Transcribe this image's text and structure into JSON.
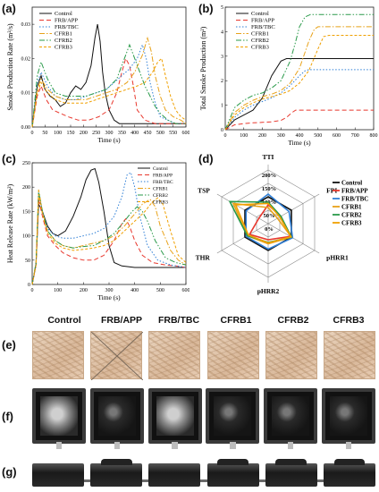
{
  "panels": {
    "a": "(a)",
    "b": "(b)",
    "c": "(c)",
    "d": "(d)",
    "e": "(e)",
    "f": "(f)",
    "g": "(g)"
  },
  "series_names": [
    "Control",
    "FRB/APP",
    "FRB/TBC",
    "CFRB1",
    "CFRB2",
    "CFRB3"
  ],
  "colors": {
    "Control": "#111111",
    "FRB/APP": "#e8382e",
    "FRB/TBC": "#2f7fd6",
    "CFRB1": "#e8a21a",
    "CFRB2": "#2a9a4a",
    "CFRB3": "#f0a000"
  },
  "photo_columns": [
    "Control",
    "FRB/APP",
    "FRB/TBC",
    "CFRB1",
    "CFRB2",
    "CFRB3"
  ],
  "chart_data": [
    {
      "id": "a",
      "type": "line",
      "xlabel": "Time (s)",
      "ylabel": "Smoke Production Rate (m²/s)",
      "xlim": [
        0,
        600
      ],
      "ylim": [
        0,
        0.035
      ],
      "xticks": [
        0,
        50,
        100,
        150,
        200,
        250,
        300,
        350,
        400,
        450,
        500,
        550,
        600
      ],
      "yticks": [
        0,
        0.01,
        0.02,
        0.03
      ],
      "ytick_labels": [
        "0.00",
        "0.01",
        "0.02",
        "0.03"
      ],
      "series": [
        {
          "name": "Control",
          "x": [
            0,
            20,
            35,
            50,
            70,
            90,
            110,
            130,
            150,
            170,
            190,
            210,
            230,
            245,
            255,
            265,
            275,
            285,
            300,
            320,
            340,
            360,
            400,
            500,
            600
          ],
          "y": [
            0,
            0.012,
            0.015,
            0.011,
            0.009,
            0.008,
            0.006,
            0.007,
            0.01,
            0.012,
            0.011,
            0.013,
            0.018,
            0.026,
            0.03,
            0.025,
            0.016,
            0.01,
            0.005,
            0.002,
            0.001,
            0.001,
            0.001,
            0.001,
            0.001
          ]
        },
        {
          "name": "FRB/APP",
          "x": [
            0,
            20,
            35,
            55,
            80,
            110,
            140,
            180,
            220,
            260,
            300,
            330,
            350,
            365,
            380,
            395,
            410,
            440,
            480,
            520,
            560,
            600
          ],
          "y": [
            0,
            0.009,
            0.012,
            0.008,
            0.005,
            0.004,
            0.003,
            0.002,
            0.002,
            0.003,
            0.005,
            0.01,
            0.016,
            0.02,
            0.018,
            0.012,
            0.005,
            0.002,
            0.001,
            0.001,
            0.001,
            0.001
          ]
        },
        {
          "name": "FRB/TBC",
          "x": [
            0,
            20,
            35,
            60,
            90,
            130,
            170,
            210,
            250,
            290,
            320,
            350,
            380,
            410,
            430,
            445,
            460,
            480,
            500,
            530,
            560,
            600
          ],
          "y": [
            0,
            0.013,
            0.016,
            0.012,
            0.009,
            0.008,
            0.008,
            0.009,
            0.01,
            0.011,
            0.013,
            0.015,
            0.017,
            0.02,
            0.024,
            0.02,
            0.013,
            0.007,
            0.003,
            0.002,
            0.001,
            0.001
          ]
        },
        {
          "name": "CFRB1",
          "x": [
            0,
            20,
            35,
            60,
            90,
            130,
            170,
            210,
            250,
            290,
            330,
            370,
            400,
            430,
            450,
            465,
            480,
            500,
            520,
            550,
            580,
            600
          ],
          "y": [
            0,
            0.011,
            0.014,
            0.011,
            0.009,
            0.008,
            0.008,
            0.008,
            0.009,
            0.01,
            0.011,
            0.013,
            0.016,
            0.021,
            0.026,
            0.022,
            0.015,
            0.009,
            0.005,
            0.003,
            0.002,
            0.001
          ]
        },
        {
          "name": "CFRB2",
          "x": [
            0,
            20,
            35,
            60,
            90,
            130,
            170,
            210,
            250,
            290,
            330,
            360,
            380,
            400,
            420,
            440,
            460,
            480,
            500,
            530,
            560,
            600
          ],
          "y": [
            0,
            0.015,
            0.019,
            0.014,
            0.01,
            0.009,
            0.009,
            0.009,
            0.01,
            0.011,
            0.014,
            0.02,
            0.024,
            0.02,
            0.016,
            0.012,
            0.009,
            0.006,
            0.004,
            0.002,
            0.001,
            0.001
          ]
        },
        {
          "name": "CFRB3",
          "x": [
            0,
            20,
            35,
            60,
            90,
            130,
            170,
            210,
            250,
            290,
            330,
            370,
            410,
            440,
            470,
            490,
            505,
            520,
            540,
            560,
            580,
            600
          ],
          "y": [
            0,
            0.01,
            0.013,
            0.01,
            0.008,
            0.007,
            0.007,
            0.007,
            0.008,
            0.009,
            0.01,
            0.011,
            0.012,
            0.013,
            0.016,
            0.019,
            0.02,
            0.015,
            0.009,
            0.005,
            0.003,
            0.002
          ]
        }
      ]
    },
    {
      "id": "b",
      "type": "line",
      "xlabel": "Time (s)",
      "ylabel": "Total Smoke Production (m²)",
      "xlim": [
        0,
        800
      ],
      "ylim": [
        0,
        5
      ],
      "xticks": [
        0,
        100,
        200,
        300,
        400,
        500,
        600,
        700,
        800
      ],
      "yticks": [
        0,
        1,
        2,
        3,
        4,
        5
      ],
      "series": [
        {
          "name": "Control",
          "x": [
            0,
            50,
            100,
            150,
            200,
            250,
            300,
            330,
            350,
            800
          ],
          "y": [
            0,
            0.4,
            0.6,
            0.8,
            1.3,
            2.2,
            2.8,
            2.9,
            2.9,
            2.9
          ]
        },
        {
          "name": "FRB/APP",
          "x": [
            0,
            50,
            100,
            150,
            200,
            250,
            300,
            330,
            360,
            380,
            400,
            800
          ],
          "y": [
            0,
            0.2,
            0.25,
            0.28,
            0.3,
            0.32,
            0.38,
            0.5,
            0.7,
            0.8,
            0.8,
            0.8
          ]
        },
        {
          "name": "FRB/TBC",
          "x": [
            0,
            50,
            100,
            150,
            200,
            250,
            300,
            350,
            400,
            430,
            450,
            800
          ],
          "y": [
            0,
            0.5,
            0.8,
            1.0,
            1.15,
            1.3,
            1.5,
            1.8,
            2.2,
            2.4,
            2.45,
            2.45
          ]
        },
        {
          "name": "CFRB1",
          "x": [
            0,
            50,
            100,
            150,
            200,
            250,
            300,
            350,
            400,
            450,
            480,
            500,
            800
          ],
          "y": [
            0,
            0.7,
            1.0,
            1.2,
            1.35,
            1.45,
            1.6,
            1.9,
            2.5,
            3.6,
            4.1,
            4.2,
            4.2
          ]
        },
        {
          "name": "CFRB2",
          "x": [
            0,
            50,
            100,
            150,
            200,
            250,
            300,
            350,
            380,
            400,
            430,
            460,
            800
          ],
          "y": [
            0,
            0.9,
            1.2,
            1.4,
            1.5,
            1.7,
            2.0,
            2.8,
            3.6,
            4.2,
            4.6,
            4.7,
            4.7
          ]
        },
        {
          "name": "CFRB3",
          "x": [
            0,
            50,
            100,
            150,
            200,
            250,
            300,
            350,
            400,
            450,
            500,
            530,
            560,
            800
          ],
          "y": [
            0,
            0.6,
            0.9,
            1.1,
            1.25,
            1.35,
            1.45,
            1.6,
            1.9,
            2.4,
            3.3,
            3.8,
            3.85,
            3.85
          ]
        }
      ]
    },
    {
      "id": "c",
      "type": "line",
      "xlabel": "Time (s)",
      "ylabel": "Heat Release Rate (kW/m²)",
      "xlim": [
        0,
        600
      ],
      "ylim": [
        0,
        250
      ],
      "xticks": [
        0,
        100,
        200,
        300,
        400,
        500,
        600
      ],
      "yticks": [
        0,
        50,
        100,
        150,
        200,
        250
      ],
      "series": [
        {
          "name": "Control",
          "x": [
            0,
            15,
            25,
            40,
            60,
            80,
            100,
            130,
            160,
            190,
            210,
            230,
            245,
            260,
            280,
            300,
            320,
            350,
            400,
            500,
            600
          ],
          "y": [
            0,
            40,
            165,
            150,
            120,
            105,
            100,
            110,
            140,
            180,
            215,
            235,
            238,
            210,
            150,
            80,
            45,
            38,
            35,
            35,
            35
          ]
        },
        {
          "name": "FRB/APP",
          "x": [
            0,
            15,
            25,
            40,
            60,
            90,
            120,
            160,
            200,
            240,
            280,
            320,
            350,
            365,
            380,
            400,
            430,
            470,
            520,
            560,
            600
          ],
          "y": [
            0,
            40,
            175,
            140,
            100,
            80,
            65,
            55,
            50,
            50,
            60,
            90,
            125,
            135,
            120,
            90,
            60,
            45,
            40,
            38,
            35
          ]
        },
        {
          "name": "FRB/TBC",
          "x": [
            0,
            15,
            25,
            40,
            60,
            90,
            120,
            160,
            200,
            240,
            280,
            320,
            350,
            370,
            385,
            400,
            420,
            450,
            490,
            540,
            600
          ],
          "y": [
            0,
            45,
            190,
            150,
            115,
            100,
            95,
            95,
            100,
            105,
            115,
            140,
            180,
            225,
            230,
            200,
            140,
            80,
            50,
            40,
            35
          ]
        },
        {
          "name": "CFRB1",
          "x": [
            0,
            15,
            25,
            40,
            60,
            90,
            120,
            160,
            200,
            240,
            280,
            320,
            360,
            400,
            430,
            460,
            480,
            500,
            540,
            570,
            600
          ],
          "y": [
            0,
            45,
            195,
            150,
            110,
            90,
            80,
            75,
            80,
            85,
            90,
            100,
            120,
            145,
            165,
            175,
            160,
            120,
            70,
            50,
            40
          ]
        },
        {
          "name": "CFRB2",
          "x": [
            0,
            15,
            25,
            40,
            60,
            90,
            120,
            160,
            200,
            240,
            280,
            320,
            360,
            390,
            410,
            430,
            450,
            480,
            520,
            560,
            600
          ],
          "y": [
            0,
            45,
            190,
            150,
            110,
            90,
            80,
            75,
            78,
            80,
            90,
            105,
            130,
            150,
            160,
            150,
            130,
            90,
            55,
            45,
            40
          ]
        },
        {
          "name": "CFRB3",
          "x": [
            0,
            15,
            25,
            40,
            60,
            90,
            120,
            160,
            200,
            240,
            280,
            320,
            360,
            400,
            440,
            470,
            490,
            510,
            540,
            570,
            600
          ],
          "y": [
            0,
            40,
            185,
            145,
            105,
            85,
            75,
            70,
            72,
            75,
            80,
            90,
            110,
            130,
            150,
            170,
            178,
            165,
            110,
            60,
            45
          ]
        }
      ]
    },
    {
      "id": "d",
      "type": "radar",
      "axes": [
        "TTI",
        "FPI",
        "pHRR1",
        "pHRR2",
        "THR",
        "TSP"
      ],
      "rings": [
        0,
        50,
        100,
        150,
        200
      ],
      "ring_labels": [
        "0%",
        "50%",
        "100%",
        "150%",
        "200%"
      ],
      "rmax": 220,
      "series": [
        {
          "name": "Control",
          "values": [
            100,
            100,
            100,
            100,
            100,
            100
          ]
        },
        {
          "name": "FRB/APP",
          "values": [
            70,
            55,
            95,
            60,
            80,
            40
          ]
        },
        {
          "name": "FRB/TBC",
          "values": [
            110,
            90,
            105,
            95,
            95,
            95
          ]
        },
        {
          "name": "CFRB1",
          "values": [
            60,
            40,
            100,
            75,
            90,
            150
          ]
        },
        {
          "name": "CFRB2",
          "values": [
            80,
            55,
            100,
            70,
            90,
            165
          ]
        },
        {
          "name": "CFRB3",
          "values": [
            75,
            50,
            98,
            72,
            85,
            140
          ]
        }
      ]
    }
  ]
}
